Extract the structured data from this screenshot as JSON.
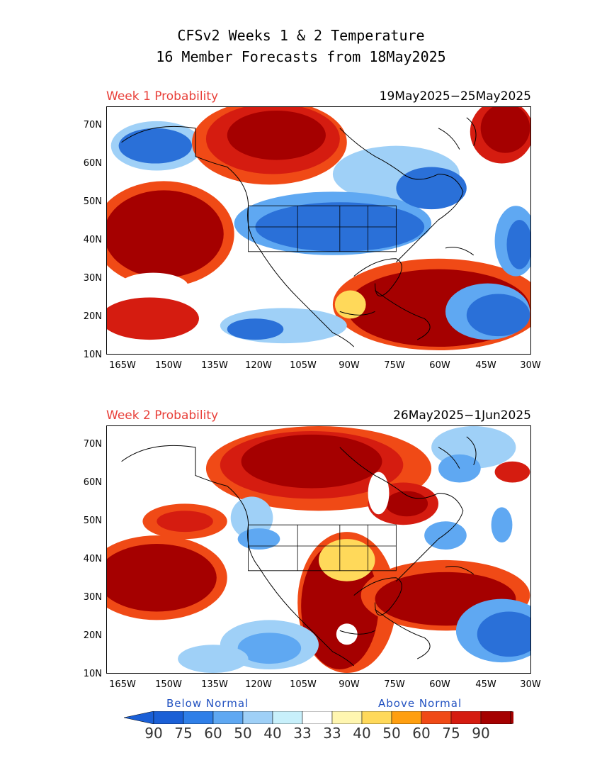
{
  "title_line1": "CFSv2 Weeks 1 & 2 Temperature",
  "title_line2": "16 Member Forecasts from 18May2025",
  "panels": [
    {
      "label": "Week 1 Probability",
      "dates": "19May2025−25May2025"
    },
    {
      "label": "Week 2 Probability",
      "dates": "26May2025−1Jun2025"
    }
  ],
  "y_ticks": [
    "70N",
    "60N",
    "50N",
    "40N",
    "30N",
    "20N",
    "10N"
  ],
  "x_ticks": [
    "165W",
    "150W",
    "135W",
    "120W",
    "105W",
    "90W",
    "75W",
    "60W",
    "45W",
    "30W"
  ],
  "legend": {
    "below_label": "Below Normal",
    "above_label": "Above Normal",
    "labels": [
      "90",
      "75",
      "60",
      "50",
      "40",
      "33",
      "33",
      "40",
      "50",
      "60",
      "75",
      "90"
    ],
    "colors": [
      "#1a5fd6",
      "#2f7fe8",
      "#5fa8f2",
      "#9fd0f7",
      "#c8f0fb",
      "#ffffff",
      "#fff6b0",
      "#ffd95a",
      "#ff9f10",
      "#f04a16",
      "#d51c10",
      "#a50000"
    ],
    "end_colors": {
      "left": "#1a5fd6",
      "right": "#a50000"
    }
  },
  "colors": {
    "blue_strong": "#2a70d8",
    "blue_light": "#9fd0f7",
    "red_dark": "#a50000",
    "red": "#d51c10",
    "orange": "#f04a16",
    "yellow": "#ffd95a"
  }
}
